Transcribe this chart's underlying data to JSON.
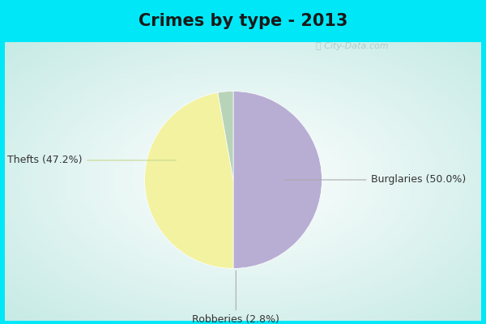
{
  "title": "Crimes by type - 2013",
  "slices": [
    {
      "label": "Burglaries (50.0%)",
      "value": 50.0,
      "color": "#b8aed4"
    },
    {
      "label": "Thefts (47.2%)",
      "value": 47.2,
      "color": "#f2f2a0"
    },
    {
      "label": "Robberies (2.8%)",
      "value": 2.8,
      "color": "#b8d4b8"
    }
  ],
  "title_fontsize": 15,
  "title_fontweight": "bold",
  "bg_outer_color": "#00e8f8",
  "bg_inner_color": "#e0f4f0",
  "label_fontsize": 9,
  "watermark": "City-Data.com"
}
